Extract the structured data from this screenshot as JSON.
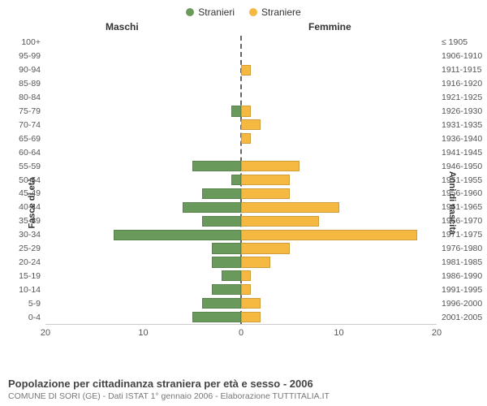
{
  "legend": {
    "male": "Stranieri",
    "female": "Straniere"
  },
  "headers": {
    "left": "Maschi",
    "right": "Femmine"
  },
  "axis": {
    "left_title": "Fasce di età",
    "right_title": "Anni di nascita"
  },
  "footer": {
    "title": "Popolazione per cittadinanza straniera per età e sesso - 2006",
    "sub": "COMUNE DI SORI (GE) - Dati ISTAT 1° gennaio 2006 - Elaborazione TUTTITALIA.IT"
  },
  "chart": {
    "type": "population-pyramid",
    "xmax": 20,
    "xticks_left": [
      20,
      10,
      0
    ],
    "xticks_right": [
      0,
      10,
      20
    ],
    "colors": {
      "male": "#6a9a5b",
      "female": "#f5b942",
      "centerline": "#666666",
      "grid": "#cccccc",
      "bg": "#ffffff"
    },
    "bar_height_pct": 78,
    "rows": [
      {
        "age": "100+",
        "birth": "≤ 1905",
        "m": 0,
        "f": 0
      },
      {
        "age": "95-99",
        "birth": "1906-1910",
        "m": 0,
        "f": 0
      },
      {
        "age": "90-94",
        "birth": "1911-1915",
        "m": 0,
        "f": 1
      },
      {
        "age": "85-89",
        "birth": "1916-1920",
        "m": 0,
        "f": 0
      },
      {
        "age": "80-84",
        "birth": "1921-1925",
        "m": 0,
        "f": 0
      },
      {
        "age": "75-79",
        "birth": "1926-1930",
        "m": 1,
        "f": 1
      },
      {
        "age": "70-74",
        "birth": "1931-1935",
        "m": 0,
        "f": 2
      },
      {
        "age": "65-69",
        "birth": "1936-1940",
        "m": 0,
        "f": 1
      },
      {
        "age": "60-64",
        "birth": "1941-1945",
        "m": 0,
        "f": 0
      },
      {
        "age": "55-59",
        "birth": "1946-1950",
        "m": 5,
        "f": 6
      },
      {
        "age": "50-54",
        "birth": "1951-1955",
        "m": 1,
        "f": 5
      },
      {
        "age": "45-49",
        "birth": "1956-1960",
        "m": 4,
        "f": 5
      },
      {
        "age": "40-44",
        "birth": "1961-1965",
        "m": 6,
        "f": 10
      },
      {
        "age": "35-39",
        "birth": "1966-1970",
        "m": 4,
        "f": 8
      },
      {
        "age": "30-34",
        "birth": "1971-1975",
        "m": 13,
        "f": 18
      },
      {
        "age": "25-29",
        "birth": "1976-1980",
        "m": 3,
        "f": 5
      },
      {
        "age": "20-24",
        "birth": "1981-1985",
        "m": 3,
        "f": 3
      },
      {
        "age": "15-19",
        "birth": "1986-1990",
        "m": 2,
        "f": 1
      },
      {
        "age": "10-14",
        "birth": "1991-1995",
        "m": 3,
        "f": 1
      },
      {
        "age": "5-9",
        "birth": "1996-2000",
        "m": 4,
        "f": 2
      },
      {
        "age": "0-4",
        "birth": "2001-2005",
        "m": 5,
        "f": 2
      }
    ]
  }
}
